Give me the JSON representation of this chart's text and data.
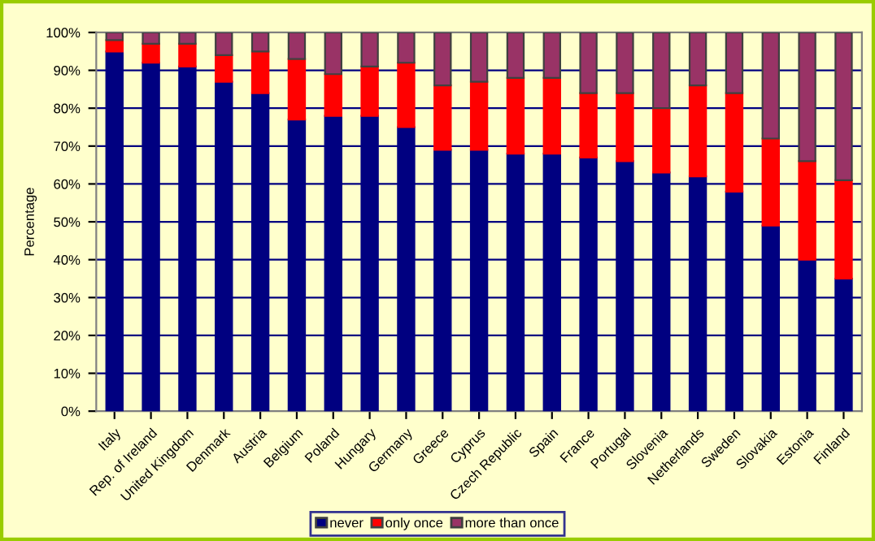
{
  "chart_data": {
    "type": "bar",
    "stacked": true,
    "ylabel": "Percentage",
    "categories": [
      "Italy",
      "Rep. of Ireland",
      "United Kingdom",
      "Denmark",
      "Austria",
      "Belgium",
      "Poland",
      "Hungary",
      "Germany",
      "Greece",
      "Cyprus",
      "Czech Republic",
      "Spain",
      "France",
      "Portugal",
      "Slovenia",
      "Netherlands",
      "Sweden",
      "Slovakia",
      "Estonia",
      "Finland"
    ],
    "series": [
      {
        "name": "never",
        "color": "#000080",
        "values": [
          95,
          92,
          91,
          87,
          84,
          77,
          78,
          78,
          75,
          69,
          69,
          68,
          68,
          67,
          66,
          63,
          62,
          58,
          49,
          40,
          35
        ]
      },
      {
        "name": "only once",
        "color": "#ff0000",
        "values": [
          3,
          5,
          6,
          7,
          11,
          16,
          11,
          13,
          17,
          17,
          18,
          20,
          20,
          17,
          18,
          17,
          24,
          26,
          23,
          26,
          26
        ]
      },
      {
        "name": "more than once",
        "color": "#993366",
        "values": [
          2,
          3,
          3,
          6,
          5,
          7,
          11,
          9,
          8,
          14,
          13,
          12,
          12,
          16,
          16,
          20,
          14,
          16,
          28,
          34,
          39
        ]
      }
    ],
    "ylim": [
      0,
      100
    ],
    "yticks": [
      {
        "value": 0,
        "label": "0%"
      },
      {
        "value": 10,
        "label": "10%"
      },
      {
        "value": 20,
        "label": "20%"
      },
      {
        "value": 30,
        "label": "30%"
      },
      {
        "value": 40,
        "label": "40%"
      },
      {
        "value": 50,
        "label": "50%"
      },
      {
        "value": 60,
        "label": "60%"
      },
      {
        "value": 70,
        "label": "70%"
      },
      {
        "value": 80,
        "label": "80%"
      },
      {
        "value": 90,
        "label": "90%"
      },
      {
        "value": 100,
        "label": "100%"
      }
    ],
    "grid": "y",
    "legend": "bottom"
  }
}
